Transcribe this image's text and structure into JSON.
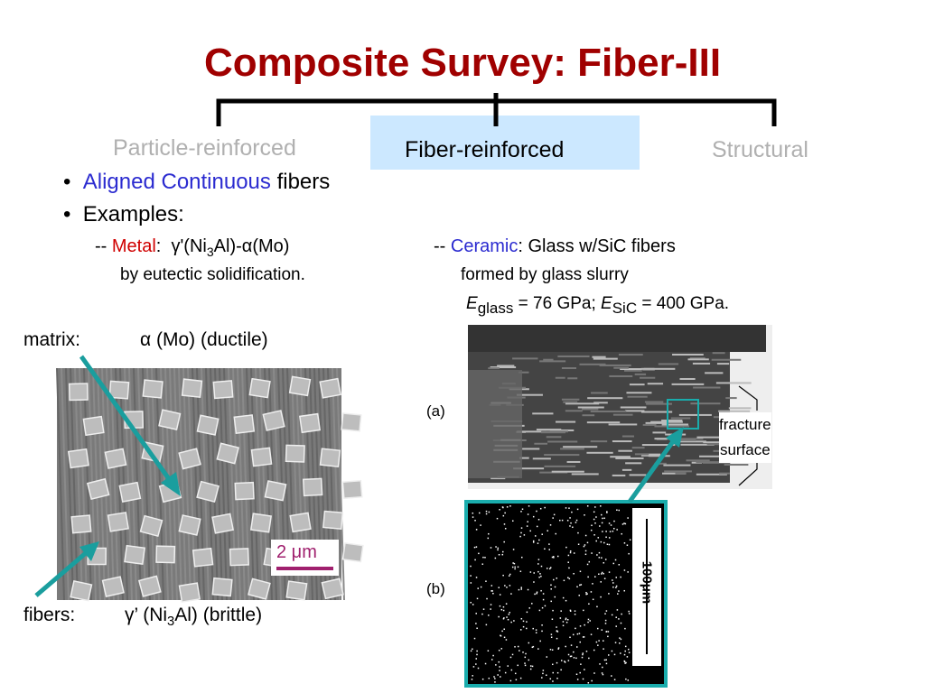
{
  "title": "Composite Survey: Fiber-III",
  "categories": [
    "Particle-reinforced",
    "Fiber-reinforced",
    "Structural"
  ],
  "bullets": [
    [
      "Aligned Continuous",
      "fibers"
    ],
    [
      "Examples:"
    ]
  ],
  "metal": {
    "prefix": "--",
    "label": "Metal",
    "colon": ":",
    "formula": [
      "γ'(Ni",
      "3",
      "Al)-α(Mo)"
    ],
    "line2": "by eutectic solidification."
  },
  "ceramic": {
    "prefix": "--",
    "label": "Ceramic",
    "rest": ": Glass w/SiC fibers",
    "line2": "formed by glass slurry",
    "line3": [
      "E",
      "glass",
      " = 76 GPa; ",
      "E",
      "SiC",
      " = 400 GPa."
    ]
  },
  "micrograph_left": {
    "matrix_label": "matrix:",
    "matrix_phase": "α  (Mo) (ductile)",
    "fibers_label": "fibers:",
    "fibers_phase": [
      "γ’ (Ni",
      "3",
      "Al) (brittle)"
    ],
    "scale": "2 μm"
  },
  "micrograph_right": {
    "label_a": "(a)",
    "label_b": "(b)",
    "annotation": [
      "fracture",
      "surface"
    ],
    "scale": "100μm"
  }
}
